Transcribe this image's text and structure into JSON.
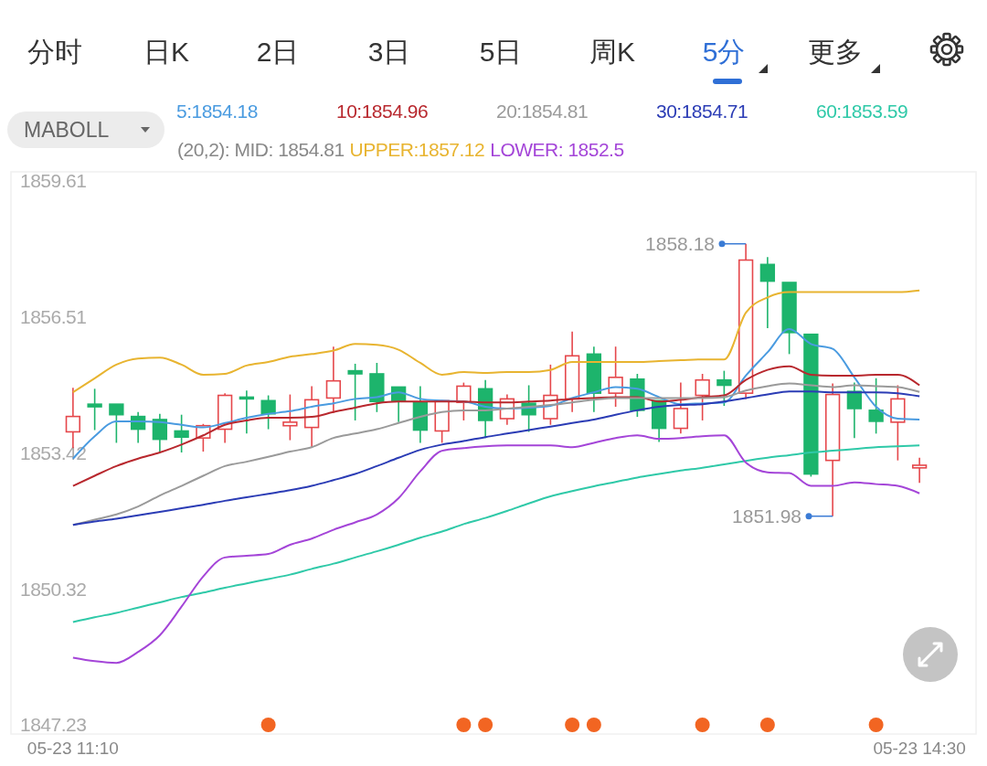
{
  "chart_data": {
    "type": "candlestick",
    "categories": [
      "05-23 11:10",
      null,
      null,
      null,
      null,
      null,
      null,
      null,
      null,
      null,
      null,
      null,
      null,
      null,
      null,
      null,
      null,
      null,
      null,
      null,
      null,
      null,
      null,
      null,
      null,
      null,
      null,
      null,
      null,
      null,
      null,
      null,
      null,
      null,
      null,
      null,
      null,
      null,
      null,
      "05-23 14:30"
    ],
    "ohlc": [
      [
        1853.9,
        1854.9,
        1853.53,
        1854.25
      ],
      [
        1854.53,
        1854.88,
        1853.94,
        1854.47
      ],
      [
        1854.53,
        1854.53,
        1853.65,
        1854.29
      ],
      [
        1854.25,
        1854.35,
        1853.65,
        1853.96
      ],
      [
        1854.18,
        1854.31,
        1853.43,
        1853.73
      ],
      [
        1853.92,
        1854.29,
        1853.43,
        1853.78
      ],
      [
        1853.76,
        1854.08,
        1853.45,
        1854.04
      ],
      [
        1853.96,
        1854.78,
        1853.65,
        1854.73
      ],
      [
        1854.69,
        1854.84,
        1853.86,
        1854.65
      ],
      [
        1854.61,
        1854.73,
        1853.96,
        1854.31
      ],
      [
        1854.04,
        1854.75,
        1853.71,
        1854.12
      ],
      [
        1854.0,
        1854.94,
        1853.55,
        1854.63
      ],
      [
        1854.67,
        1855.84,
        1854.33,
        1855.06
      ],
      [
        1855.29,
        1855.45,
        1854.16,
        1855.22
      ],
      [
        1855.22,
        1855.47,
        1854.35,
        1854.59
      ],
      [
        1854.92,
        1854.92,
        1854.12,
        1854.61
      ],
      [
        1854.57,
        1854.94,
        1853.65,
        1853.94
      ],
      [
        1853.92,
        1854.61,
        1853.65,
        1854.61
      ],
      [
        1854.57,
        1855.02,
        1854.16,
        1854.94
      ],
      [
        1854.88,
        1855.08,
        1853.76,
        1854.16
      ],
      [
        1854.2,
        1854.75,
        1854.06,
        1854.65
      ],
      [
        1854.55,
        1854.96,
        1853.9,
        1854.29
      ],
      [
        1854.2,
        1855.43,
        1854.06,
        1854.73
      ],
      [
        1854.65,
        1856.18,
        1854.35,
        1855.63
      ],
      [
        1855.67,
        1855.84,
        1854.35,
        1854.78
      ],
      [
        1854.78,
        1855.84,
        1854.47,
        1855.14
      ],
      [
        1855.1,
        1855.22,
        1854.24,
        1854.39
      ],
      [
        1854.61,
        1854.61,
        1853.67,
        1853.98
      ],
      [
        1853.98,
        1855.02,
        1853.86,
        1854.43
      ],
      [
        1854.73,
        1855.22,
        1854.16,
        1855.08
      ],
      [
        1855.08,
        1855.29,
        1854.49,
        1854.96
      ],
      [
        1854.78,
        1858.18,
        1854.65,
        1857.81
      ],
      [
        1857.71,
        1857.88,
        1856.26,
        1857.33
      ],
      [
        1857.3,
        1857.3,
        1855.67,
        1856.16
      ],
      [
        1856.12,
        1856.12,
        1852.88,
        1852.94
      ],
      [
        1853.25,
        1855.0,
        1851.98,
        1854.75
      ],
      [
        1854.82,
        1855.02,
        1853.76,
        1854.43
      ],
      [
        1854.39,
        1855.12,
        1853.86,
        1854.14
      ],
      [
        1854.12,
        1854.96,
        1853.25,
        1854.65
      ],
      [
        1853.08,
        1853.31,
        1852.74,
        1853.14
      ]
    ],
    "colors": [
      "#e5474b",
      "#1db46c",
      "#1db46c",
      "#1db46c",
      "#1db46c",
      "#1db46c",
      "#e5474b",
      "#e5474b",
      "#1db46c",
      "#1db46c",
      "#e5474b",
      "#e5474b",
      "#e5474b",
      "#1db46c",
      "#1db46c",
      "#1db46c",
      "#1db46c",
      "#e5474b",
      "#e5474b",
      "#1db46c",
      "#e5474b",
      "#1db46c",
      "#e5474b",
      "#e5474b",
      "#1db46c",
      "#e5474b",
      "#1db46c",
      "#1db46c",
      "#e5474b",
      "#e5474b",
      "#1db46c",
      "#e5474b",
      "#1db46c",
      "#1db46c",
      "#1db46c",
      "#e5474b",
      "#1db46c",
      "#1db46c",
      "#e5474b",
      "#e5474b"
    ],
    "series": [
      {
        "type": "line",
        "name": "5:1854.18",
        "color": "#4a9be0",
        "values": [
          1853.29,
          1853.8,
          1854.14,
          1854.14,
          1854.12,
          1854.06,
          1854.0,
          1854.1,
          1854.22,
          1854.31,
          1854.37,
          1854.47,
          1854.55,
          1854.65,
          1854.69,
          1854.8,
          1854.65,
          1854.61,
          1854.59,
          1854.47,
          1854.43,
          1854.45,
          1854.49,
          1854.67,
          1854.8,
          1854.92,
          1854.88,
          1854.69,
          1854.53,
          1854.55,
          1854.57,
          1855.18,
          1855.71,
          1856.24,
          1855.9,
          1855.79,
          1855.14,
          1854.47,
          1854.2,
          1854.18
        ]
      },
      {
        "type": "line",
        "name": "10:1854.96",
        "color": "#b8282e",
        "values": [
          1852.67,
          1852.9,
          1853.12,
          1853.29,
          1853.43,
          1853.61,
          1853.82,
          1854.06,
          1854.16,
          1854.22,
          1854.22,
          1854.24,
          1854.35,
          1854.45,
          1854.55,
          1854.59,
          1854.59,
          1854.59,
          1854.59,
          1854.57,
          1854.57,
          1854.59,
          1854.61,
          1854.65,
          1854.67,
          1854.69,
          1854.69,
          1854.59,
          1854.63,
          1854.69,
          1854.73,
          1855.08,
          1855.31,
          1855.39,
          1855.2,
          1855.18,
          1855.18,
          1855.2,
          1855.2,
          1854.96
        ]
      },
      {
        "type": "line",
        "name": "20:1854.81",
        "color": "#9a9a9a",
        "values": [
          1851.78,
          1851.9,
          1852.02,
          1852.2,
          1852.45,
          1852.67,
          1852.9,
          1853.12,
          1853.22,
          1853.33,
          1853.45,
          1853.55,
          1853.76,
          1853.86,
          1853.96,
          1854.1,
          1854.24,
          1854.35,
          1854.39,
          1854.39,
          1854.43,
          1854.47,
          1854.51,
          1854.57,
          1854.63,
          1854.67,
          1854.67,
          1854.67,
          1854.67,
          1854.67,
          1854.69,
          1854.84,
          1854.94,
          1855.0,
          1854.96,
          1854.92,
          1854.96,
          1854.94,
          1854.92,
          1854.81
        ]
      },
      {
        "type": "line",
        "name": "30:1854.71",
        "color": "#2b3cb5",
        "values": [
          1851.78,
          1851.86,
          1851.92,
          1852.0,
          1852.08,
          1852.16,
          1852.24,
          1852.33,
          1852.41,
          1852.49,
          1852.57,
          1852.67,
          1852.8,
          1852.94,
          1853.12,
          1853.31,
          1853.49,
          1853.61,
          1853.69,
          1853.78,
          1853.86,
          1853.94,
          1854.02,
          1854.1,
          1854.18,
          1854.29,
          1854.39,
          1854.47,
          1854.51,
          1854.53,
          1854.59,
          1854.67,
          1854.75,
          1854.82,
          1854.82,
          1854.8,
          1854.8,
          1854.8,
          1854.78,
          1854.71
        ]
      },
      {
        "type": "line",
        "name": "60:1853.59",
        "color": "#2fc9a8",
        "values": [
          1849.57,
          1849.68,
          1849.78,
          1849.9,
          1850.02,
          1850.14,
          1850.24,
          1850.35,
          1850.45,
          1850.55,
          1850.65,
          1850.78,
          1850.9,
          1851.04,
          1851.18,
          1851.33,
          1851.49,
          1851.63,
          1851.8,
          1851.94,
          1852.1,
          1852.27,
          1852.43,
          1852.55,
          1852.66,
          1852.76,
          1852.86,
          1852.94,
          1853.02,
          1853.08,
          1853.16,
          1853.24,
          1853.31,
          1853.37,
          1853.43,
          1853.47,
          1853.51,
          1853.55,
          1853.57,
          1853.59
        ]
      },
      {
        "type": "line",
        "name": "UPPER:1857.12",
        "color": "#e8b430",
        "values": [
          1854.8,
          1855.12,
          1855.43,
          1855.57,
          1855.59,
          1855.43,
          1855.2,
          1855.22,
          1855.41,
          1855.49,
          1855.61,
          1855.67,
          1855.75,
          1855.9,
          1855.88,
          1855.77,
          1855.47,
          1855.2,
          1855.26,
          1855.24,
          1855.26,
          1855.26,
          1855.31,
          1855.49,
          1855.49,
          1855.49,
          1855.49,
          1855.51,
          1855.53,
          1855.55,
          1855.55,
          1856.61,
          1856.96,
          1857.08,
          1857.08,
          1857.08,
          1857.08,
          1857.08,
          1857.08,
          1857.12
        ]
      },
      {
        "type": "line",
        "name": "LOWER: 1852.5",
        "color": "#a445d8",
        "values": [
          1848.76,
          1848.68,
          1848.64,
          1848.89,
          1849.27,
          1849.92,
          1850.61,
          1851.04,
          1851.08,
          1851.12,
          1851.33,
          1851.47,
          1851.67,
          1851.84,
          1852.02,
          1852.39,
          1853.0,
          1853.47,
          1853.53,
          1853.57,
          1853.59,
          1853.59,
          1853.59,
          1853.55,
          1853.65,
          1853.76,
          1853.82,
          1853.74,
          1853.76,
          1853.8,
          1853.82,
          1853.2,
          1852.98,
          1852.96,
          1852.67,
          1852.67,
          1852.75,
          1852.71,
          1852.67,
          1852.5
        ]
      },
      {
        "type": "scatter",
        "color": "#f26522",
        "marker": "circle",
        "values": [
          null,
          null,
          null,
          null,
          null,
          null,
          null,
          null,
          null,
          1847.23,
          null,
          null,
          null,
          null,
          null,
          null,
          null,
          null,
          1847.23,
          1847.23,
          null,
          null,
          null,
          1847.23,
          1847.23,
          null,
          null,
          null,
          null,
          1847.23,
          null,
          null,
          1847.23,
          null,
          null,
          null,
          null,
          1847.23,
          null,
          null
        ]
      }
    ],
    "ylim": [
      1847.23,
      1859.61
    ],
    "yticks": [
      1859.61,
      1856.51,
      1853.42,
      1850.32,
      1847.23
    ],
    "grid": false,
    "legend": "top",
    "annotations": [
      "分时",
      "日K",
      "2日",
      "3日",
      "5日",
      "周K",
      "5分",
      "更多",
      "MABOLL",
      "(20,2): MID: 1854.81",
      "1858.18",
      "1851.98"
    ]
  }
}
